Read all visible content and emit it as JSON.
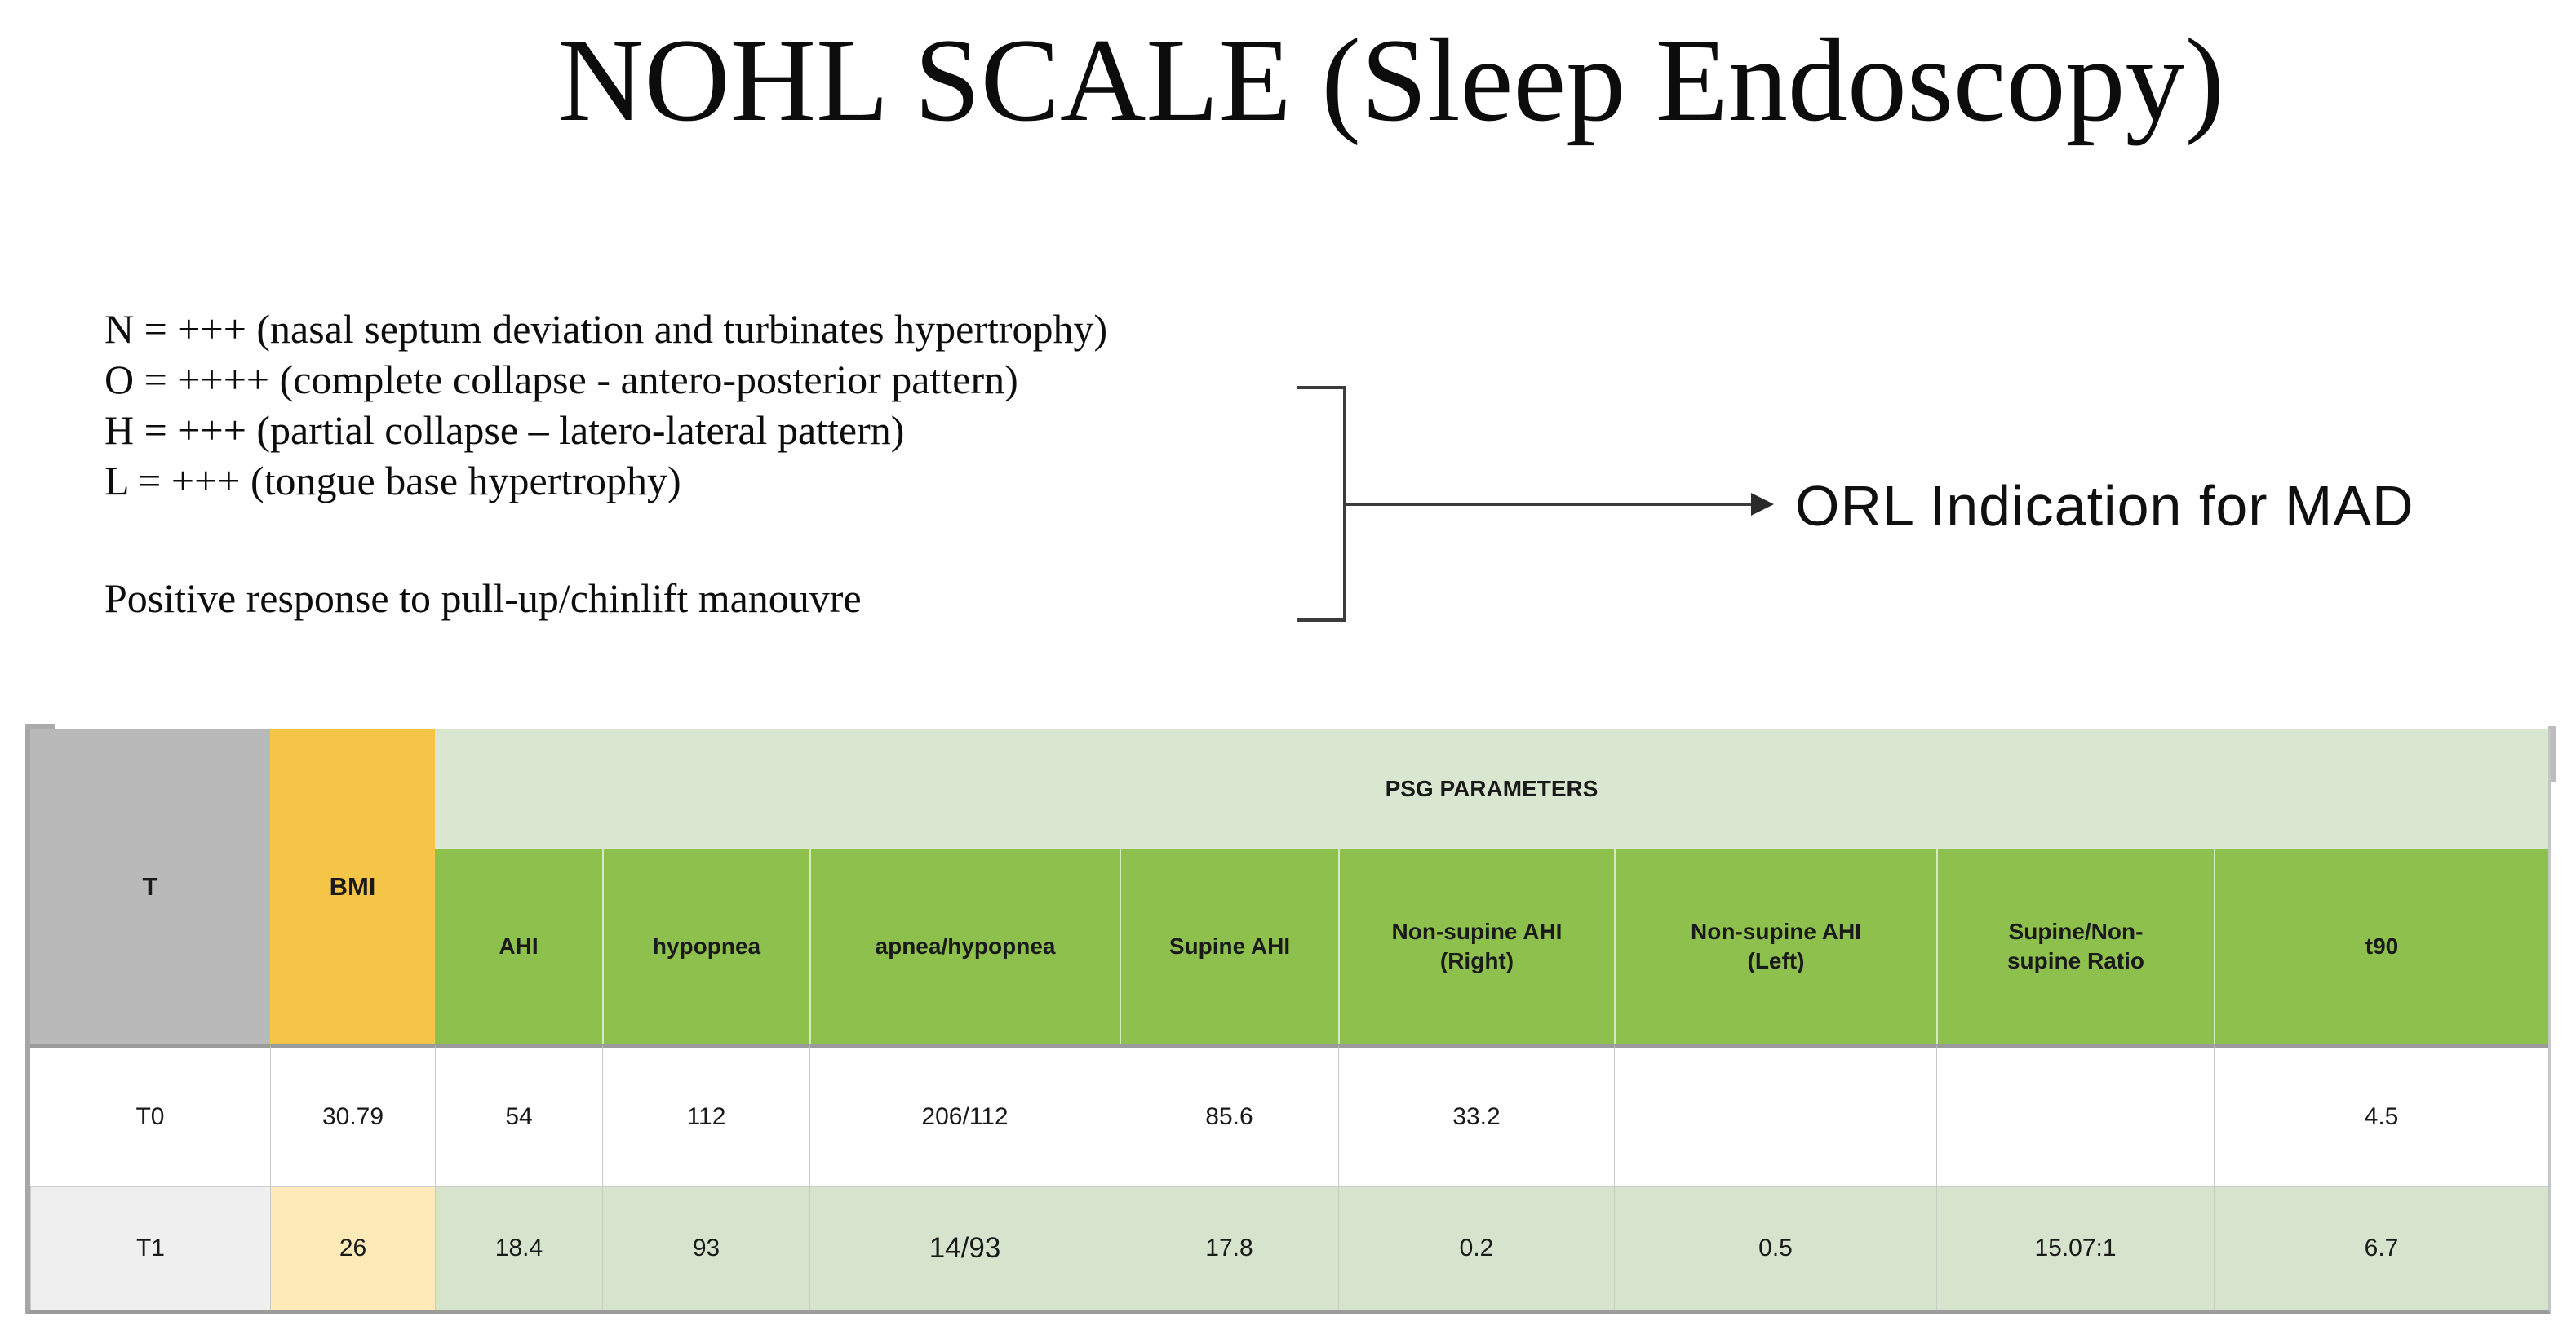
{
  "title": "NOHL SCALE (Sleep Endoscopy)",
  "legend": {
    "lines": [
      "N = +++ (nasal septum deviation and turbinates hypertrophy)",
      "O = ++++ (complete collapse - antero-posterior pattern)",
      "H = +++ (partial collapse – latero-lateral pattern)",
      "L = +++ (tongue base hypertrophy)"
    ],
    "note": "Positive response to pull-up/chinlift manouvre"
  },
  "callout": {
    "label": "ORL Indication for MAD"
  },
  "table": {
    "corner_header": "T",
    "bmi_header": "BMI",
    "group_header": "PSG PARAMETERS",
    "sub_headers": [
      "AHI",
      "hypopnea",
      "apnea/hypopnea",
      "Supine AHI",
      "Non-supine AHI\n(Right)",
      "Non-supine AHI\n(Left)",
      "Supine/Non-\nsupine Ratio",
      "t90"
    ],
    "rows": [
      {
        "t": "T0",
        "bmi": "30.79",
        "values": [
          "54",
          "112",
          "206/112",
          "85.6",
          "33.2",
          "",
          "",
          "4.5"
        ]
      },
      {
        "t": "T1",
        "bmi": "26",
        "values": [
          "18.4",
          "93",
          "14/93",
          "17.8",
          "0.2",
          "0.5",
          "15.07:1",
          "6.7"
        ]
      }
    ]
  },
  "colors": {
    "header_gray": "#b9b9b9",
    "header_yellow": "#f5c547",
    "band_light_green": "#d9e7d1",
    "subheader_green": "#8ec04e",
    "row_alt_gray": "#efefef",
    "row_alt_yellow": "#fdeab8",
    "row_alt_green": "#d6e4ce",
    "border_dark": "#9b9b9b",
    "text_color": "#1a1a1a"
  }
}
